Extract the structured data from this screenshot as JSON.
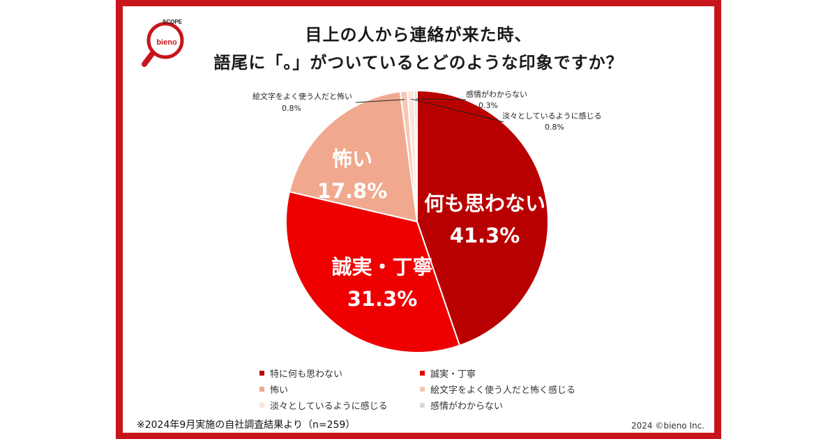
{
  "title": {
    "line1": "目上の人から連絡が来た時、",
    "line2": "語尾に「。」がついているとどのような印象ですか？"
  },
  "logo": {
    "brand": "bieno",
    "label": "SCOPE"
  },
  "chart_data": {
    "type": "pie",
    "title": "目上の人から連絡が来た時、語尾に「。」がついているとどのような印象ですか？",
    "slices": [
      {
        "label": "何も思わない",
        "legend": "特に何も思わない",
        "value": 41.3,
        "value_text": "41.3%",
        "color": "#b90000"
      },
      {
        "label": "誠実・丁寧",
        "legend": "誠実・丁寧",
        "value": 31.3,
        "value_text": "31.3%",
        "color": "#ee0000"
      },
      {
        "label": "怖い",
        "legend": "怖い",
        "value": 17.8,
        "value_text": "17.8%",
        "color": "#f0a98e"
      },
      {
        "label": "絵文字をよく使う人だと怖い",
        "legend": "絵文字をよく使う人だと怖く感じる",
        "value": 0.8,
        "value_text": "0.8%",
        "color": "#f6c7b4"
      },
      {
        "label": "淡々としているように感じる",
        "legend": "淡々としているように感じる",
        "value": 0.8,
        "value_text": "0.8%",
        "color": "#fbe4da"
      },
      {
        "label": "感情がわからない",
        "legend": "感情がわからない",
        "value": 0.3,
        "value_text": "0.3%",
        "color": "#d9d9d9"
      }
    ],
    "legend_placement": "bottom"
  },
  "colors": {
    "frame": "#c8151b"
  },
  "footnote": "※2024年9月実施の自社調査結果より（n=259）",
  "copyright": "2024 ©bieno Inc."
}
